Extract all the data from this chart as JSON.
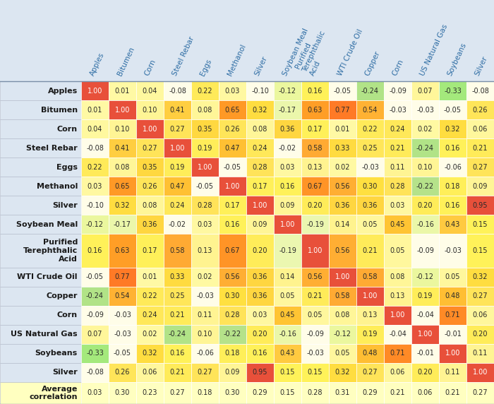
{
  "col_headers": [
    "Apples",
    "Bitumen",
    "Corn",
    "Steel Rebar",
    "Eggs",
    "Methanol",
    "Silver",
    "Soybean Meal",
    "Purified\nTerephthalic\nAcid",
    "WTI Crude Oil",
    "Copper",
    "Corn",
    "US Natural Gas",
    "Soybeans",
    "Silver"
  ],
  "row_headers": [
    "Apples",
    "Bitumen",
    "Corn",
    "Steel Rebar",
    "Eggs",
    "Methanol",
    "Silver",
    "Soybean Meal",
    "Purified\nTerephthalic\nAcid",
    "WTI Crude Oil",
    "Copper",
    "Corn",
    "US Natural Gas",
    "Soybeans",
    "Silver",
    "Average\ncorrelation"
  ],
  "data": [
    [
      1.0,
      0.01,
      0.04,
      -0.08,
      0.22,
      0.03,
      -0.1,
      -0.12,
      0.16,
      -0.05,
      -0.24,
      -0.09,
      0.07,
      -0.33,
      -0.08
    ],
    [
      0.01,
      1.0,
      0.1,
      0.41,
      0.08,
      0.65,
      0.32,
      -0.17,
      0.63,
      0.77,
      0.54,
      -0.03,
      -0.03,
      -0.05,
      0.26
    ],
    [
      0.04,
      0.1,
      1.0,
      0.27,
      0.35,
      0.26,
      0.08,
      0.36,
      0.17,
      0.01,
      0.22,
      0.24,
      0.02,
      0.32,
      0.06
    ],
    [
      -0.08,
      0.41,
      0.27,
      1.0,
      0.19,
      0.47,
      0.24,
      -0.02,
      0.58,
      0.33,
      0.25,
      0.21,
      -0.24,
      0.16,
      0.21
    ],
    [
      0.22,
      0.08,
      0.35,
      0.19,
      1.0,
      -0.05,
      0.28,
      0.03,
      0.13,
      0.02,
      -0.03,
      0.11,
      0.1,
      -0.06,
      0.27
    ],
    [
      0.03,
      0.65,
      0.26,
      0.47,
      -0.05,
      1.0,
      0.17,
      0.16,
      0.67,
      0.56,
      0.3,
      0.28,
      -0.22,
      0.18,
      0.09
    ],
    [
      -0.1,
      0.32,
      0.08,
      0.24,
      0.28,
      0.17,
      1.0,
      0.09,
      0.2,
      0.36,
      0.36,
      0.03,
      0.2,
      0.16,
      0.95
    ],
    [
      -0.12,
      -0.17,
      0.36,
      -0.02,
      0.03,
      0.16,
      0.09,
      1.0,
      -0.19,
      0.14,
      0.05,
      0.45,
      -0.16,
      0.43,
      0.15
    ],
    [
      0.16,
      0.63,
      0.17,
      0.58,
      0.13,
      0.67,
      0.2,
      -0.19,
      1.0,
      0.56,
      0.21,
      0.05,
      -0.09,
      -0.03,
      0.15
    ],
    [
      -0.05,
      0.77,
      0.01,
      0.33,
      0.02,
      0.56,
      0.36,
      0.14,
      0.56,
      1.0,
      0.58,
      0.08,
      -0.12,
      0.05,
      0.32
    ],
    [
      -0.24,
      0.54,
      0.22,
      0.25,
      -0.03,
      0.3,
      0.36,
      0.05,
      0.21,
      0.58,
      1.0,
      0.13,
      0.19,
      0.48,
      0.27
    ],
    [
      -0.09,
      -0.03,
      0.24,
      0.21,
      0.11,
      0.28,
      0.03,
      0.45,
      0.05,
      0.08,
      0.13,
      1.0,
      -0.04,
      0.71,
      0.06
    ],
    [
      0.07,
      -0.03,
      0.02,
      -0.24,
      0.1,
      -0.22,
      0.2,
      -0.16,
      -0.09,
      -0.12,
      0.19,
      -0.04,
      1.0,
      -0.01,
      0.2
    ],
    [
      -0.33,
      -0.05,
      0.32,
      0.16,
      -0.06,
      0.18,
      0.16,
      0.43,
      -0.03,
      0.05,
      0.48,
      0.71,
      -0.01,
      1.0,
      0.11
    ],
    [
      -0.08,
      0.26,
      0.06,
      0.21,
      0.27,
      0.09,
      0.95,
      0.15,
      0.15,
      0.32,
      0.27,
      0.06,
      0.2,
      0.11,
      1.0
    ],
    [
      0.03,
      0.3,
      0.23,
      0.27,
      0.18,
      0.3,
      0.29,
      0.15,
      0.28,
      0.31,
      0.29,
      0.21,
      0.06,
      0.21,
      0.27
    ]
  ],
  "header_bg": "#dce6f1",
  "header_text_color": "#2e6da4",
  "row_label_bg": "#dce6f1",
  "row_label_text": "#1a1a1a",
  "last_row_bg": "#ffffc0",
  "cell_font_size": 7.0,
  "header_font_size": 7.5,
  "row_label_font_size": 8.0,
  "figw": 7.0,
  "figh": 5.72,
  "dpi": 100
}
